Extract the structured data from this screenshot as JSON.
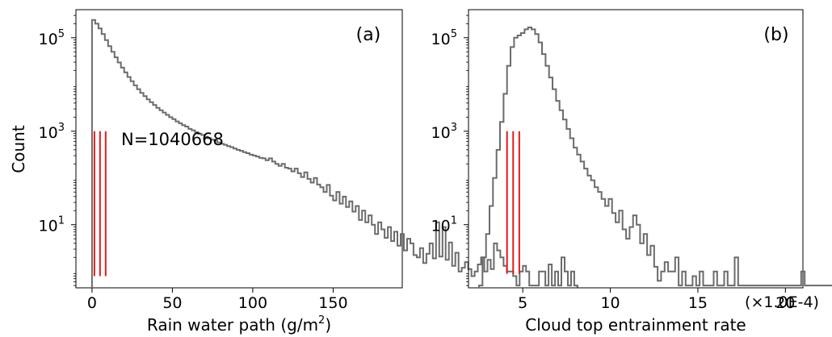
{
  "chart_data": [
    {
      "type": "histogram",
      "panel_label": "(a)",
      "xlabel": "Rain water path (g/m",
      "xlabel_sup": "2",
      "xlabel_close": ")",
      "ylabel": "Count",
      "yscale": "log",
      "xlim": [
        -10,
        193
      ],
      "ylim_log10": [
        -0.35,
        5.6
      ],
      "x_ticks": [
        0,
        50,
        100,
        150
      ],
      "x_tick_labels": [
        "0",
        "50",
        "100",
        "150"
      ],
      "y_ticks_log10": [
        1,
        3,
        5
      ],
      "y_tick_labels": [
        {
          "base": "10",
          "exp": "1"
        },
        {
          "base": "10",
          "exp": "3"
        },
        {
          "base": "10",
          "exp": "5"
        }
      ],
      "annotation": "N=1040668",
      "bin_width": 2,
      "bin_start": 0,
      "log10_counts": [
        5.38,
        5.3,
        5.2,
        5.08,
        4.95,
        4.82,
        4.7,
        4.58,
        4.47,
        4.36,
        4.26,
        4.16,
        4.07,
        3.98,
        3.9,
        3.82,
        3.75,
        3.68,
        3.62,
        3.56,
        3.5,
        3.45,
        3.4,
        3.35,
        3.3,
        3.26,
        3.21,
        3.17,
        3.13,
        3.1,
        3.05,
        3.02,
        2.98,
        2.95,
        2.92,
        2.88,
        2.85,
        2.82,
        2.8,
        2.76,
        2.73,
        2.71,
        2.68,
        2.66,
        2.63,
        2.6,
        2.58,
        2.55,
        2.53,
        2.5,
        2.48,
        2.46,
        2.43,
        2.42,
        2.38,
        2.42,
        2.35,
        2.3,
        2.26,
        2.3,
        2.22,
        2.2,
        2.14,
        2.2,
        2.1,
        2.02,
        2.12,
        1.98,
        1.9,
        2.0,
        1.86,
        1.8,
        1.7,
        1.85,
        1.62,
        1.52,
        1.7,
        1.45,
        1.6,
        1.38,
        1.5,
        1.28,
        1.4,
        1.1,
        1.3,
        1.05,
        1.2,
        1.0,
        0.8,
        1.05,
        0.9,
        0.72,
        0.95,
        0.65,
        0.85,
        0.55,
        0.8,
        0.45,
        0.7,
        0.6,
        0.35,
        0.3,
        0.5,
        0.18,
        0.38,
        0.6,
        0.28,
        1.05,
        0.32,
        0.95,
        0.25,
        0.62,
        0.12,
        0.4,
        0.0,
        0.08,
        0.2,
        0.05,
        -0.1,
        0.0,
        0.15,
        0.3,
        0.0,
        0.25,
        0.05,
        0.6,
        0.45,
        0.3,
        0.12,
        0.0,
        0.0,
        -0.1,
        -0.3,
        0.0,
        0.12,
        0.0,
        -0.3,
        -0.3,
        -0.3,
        0.0,
        0.0,
        -0.3,
        0.15,
        -0.3,
        0.0,
        -0.3,
        0.3,
        0.0,
        -0.3,
        0.0,
        -0.3
      ],
      "red_lines_x": [
        1.5,
        5,
        8.5
      ],
      "red_lines_log10_top": 3.0,
      "red_lines_log10_bottom": -0.1,
      "colors": {
        "histogram": "#6b6b6b",
        "red_lines": "#e41a1c"
      }
    },
    {
      "type": "histogram",
      "panel_label": "(b)",
      "xlabel": "Cloud top entrainment rate",
      "x_offset_label": "(×1.0E-4)",
      "yscale": "log",
      "xlim": [
        1.9,
        21
      ],
      "ylim_log10": [
        -0.35,
        5.6
      ],
      "x_ticks": [
        5,
        10,
        15,
        20
      ],
      "x_tick_labels": [
        "5",
        "10",
        "15",
        "20"
      ],
      "y_ticks_log10": [
        1,
        3,
        5
      ],
      "y_tick_labels": [
        {
          "base": "10",
          "exp": "1"
        },
        {
          "base": "10",
          "exp": "3"
        },
        {
          "base": "10",
          "exp": "5"
        }
      ],
      "bin_width": 0.2,
      "bin_start": 2.5,
      "log10_counts": [
        -0.3,
        0.3,
        0.8,
        1.4,
        2.0,
        2.6,
        3.2,
        3.8,
        4.4,
        4.8,
        5.0,
        5.05,
        5.1,
        5.18,
        5.22,
        5.18,
        5.08,
        4.9,
        4.65,
        4.4,
        4.15,
        3.9,
        3.65,
        3.45,
        3.25,
        3.05,
        2.85,
        2.65,
        2.5,
        2.35,
        2.2,
        2.05,
        1.95,
        1.8,
        1.7,
        1.55,
        1.4,
        1.55,
        1.25,
        1.05,
        1.3,
        0.9,
        0.7,
        0.95,
        1.2,
        1.0,
        0.6,
        0.8,
        0.35,
        0.55,
        0.1,
        -0.2,
        0.0,
        0.2,
        0.0,
        0.0,
        0.3,
        -0.3,
        0.0,
        -0.3,
        -0.3,
        -0.1,
        -0.3,
        0.0,
        -0.3,
        -0.3,
        -0.3,
        0.0,
        -0.3,
        -0.3,
        0.0,
        -0.3,
        -0.3,
        0.3,
        -0.3,
        -0.3,
        -0.3,
        -0.3,
        -0.3,
        -0.3,
        -0.3,
        -0.3,
        -0.3,
        -0.3,
        -0.3,
        -0.3,
        -0.3,
        -0.3,
        -0.3,
        -0.3,
        -0.3,
        -0.3,
        0.0,
        -0.3,
        -0.3,
        -0.3,
        -0.3,
        -0.3,
        -0.3,
        -0.3,
        -0.3,
        -0.3,
        -0.3,
        -0.3,
        -0.3,
        -0.3,
        -0.3,
        -0.3,
        0.0,
        -0.3
      ],
      "red_lines_x": [
        4.1,
        4.45,
        4.8
      ],
      "red_lines_log10_top": 3.0,
      "red_lines_log10_bottom": -0.05,
      "colors": {
        "histogram": "#6b6b6b",
        "red_lines": "#e41a1c"
      }
    }
  ]
}
